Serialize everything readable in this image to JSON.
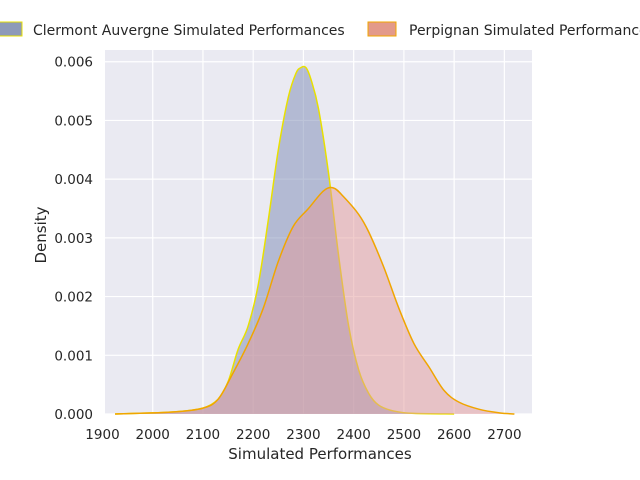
{
  "chart_data": {
    "type": "area",
    "xlabel": "Simulated Performances",
    "ylabel": "Density",
    "xlim": [
      1905,
      2755
    ],
    "ylim": [
      0,
      0.0062
    ],
    "xticks": [
      "1900",
      "2000",
      "2100",
      "2200",
      "2300",
      "2400",
      "2500",
      "2600",
      "2700"
    ],
    "yticks": [
      "0.000",
      "0.001",
      "0.002",
      "0.003",
      "0.004",
      "0.005",
      "0.006"
    ],
    "grid": true,
    "legend_position": "top",
    "series": [
      {
        "name": "Clermont Auvergne Simulated Performances",
        "fill_color": "#7b8ab3",
        "line_color": "#e8e000",
        "points": [
          [
            1925,
            0
          ],
          [
            2000,
            2e-05
          ],
          [
            2050,
            4e-05
          ],
          [
            2100,
            0.0001
          ],
          [
            2130,
            0.00025
          ],
          [
            2150,
            0.00055
          ],
          [
            2170,
            0.0011
          ],
          [
            2190,
            0.0015
          ],
          [
            2210,
            0.0022
          ],
          [
            2230,
            0.0033
          ],
          [
            2250,
            0.0045
          ],
          [
            2270,
            0.0054
          ],
          [
            2285,
            0.0058
          ],
          [
            2295,
            0.0059
          ],
          [
            2305,
            0.0059
          ],
          [
            2315,
            0.0057
          ],
          [
            2330,
            0.0052
          ],
          [
            2350,
            0.0041
          ],
          [
            2370,
            0.0027
          ],
          [
            2390,
            0.0015
          ],
          [
            2410,
            0.00075
          ],
          [
            2430,
            0.00035
          ],
          [
            2450,
            0.00015
          ],
          [
            2480,
            5e-05
          ],
          [
            2520,
            1e-05
          ],
          [
            2600,
            0
          ]
        ]
      },
      {
        "name": "Perpignan Simulated Performances",
        "fill_color": "#e39a9a",
        "line_color": "#f0a500",
        "points": [
          [
            1925,
            0
          ],
          [
            2000,
            2e-05
          ],
          [
            2050,
            4e-05
          ],
          [
            2100,
            0.0001
          ],
          [
            2130,
            0.00025
          ],
          [
            2160,
            0.0007
          ],
          [
            2190,
            0.0012
          ],
          [
            2220,
            0.0018
          ],
          [
            2250,
            0.0026
          ],
          [
            2280,
            0.0032
          ],
          [
            2310,
            0.0035
          ],
          [
            2340,
            0.0038
          ],
          [
            2360,
            0.00385
          ],
          [
            2380,
            0.0037
          ],
          [
            2410,
            0.0034
          ],
          [
            2430,
            0.0031
          ],
          [
            2460,
            0.0025
          ],
          [
            2490,
            0.0018
          ],
          [
            2520,
            0.0012
          ],
          [
            2550,
            0.0008
          ],
          [
            2580,
            0.0004
          ],
          [
            2610,
            0.0002
          ],
          [
            2650,
            8e-05
          ],
          [
            2690,
            2e-05
          ],
          [
            2720,
            0
          ]
        ]
      }
    ]
  }
}
